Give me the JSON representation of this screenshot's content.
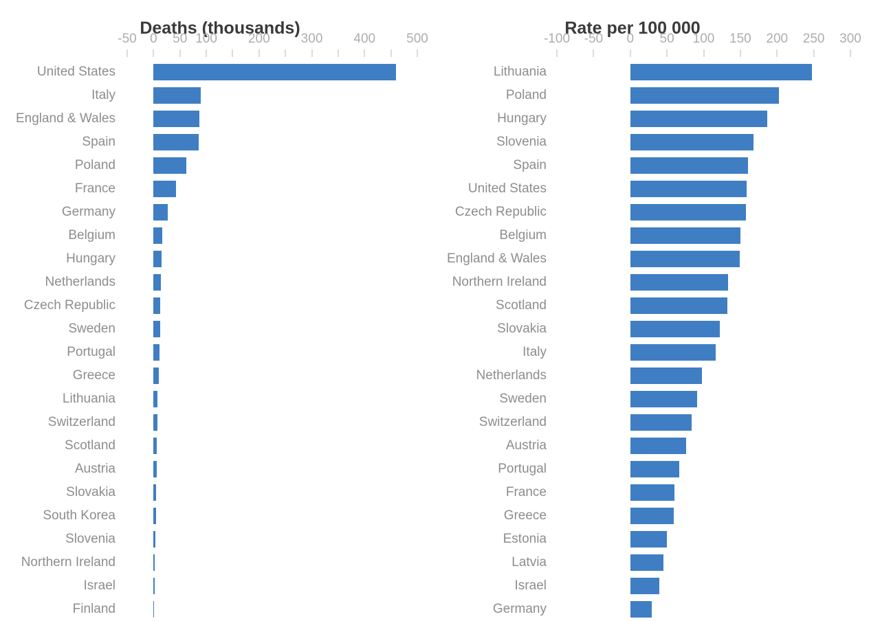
{
  "figure": {
    "background": "#ffffff",
    "bar_color": "#3f7ec3",
    "title_color": "#3a3a3a",
    "category_label_color": "#8d8d8d",
    "tick_label_color": "#adadad",
    "tick_mark_color": "#dcdcdc"
  },
  "chart_data": [
    {
      "type": "bar",
      "orientation": "horizontal",
      "title": "Deaths (thousands)",
      "xlabel": "",
      "ylabel": "",
      "grid": false,
      "legend": false,
      "axis": {
        "min": -50,
        "max": 500,
        "tick_step": 50,
        "labeled_ticks": [
          -50,
          0,
          50,
          100,
          200,
          300,
          400,
          500
        ]
      },
      "categories": [
        "United States",
        "Italy",
        "England & Wales",
        "Spain",
        "Poland",
        "France",
        "Germany",
        "Belgium",
        "Hungary",
        "Netherlands",
        "Czech Republic",
        "Sweden",
        "Portugal",
        "Greece",
        "Lithuania",
        "Switzerland",
        "Scotland",
        "Austria",
        "Slovakia",
        "South Korea",
        "Slovenia",
        "Northern Ireland",
        "Israel",
        "Finland"
      ],
      "values": [
        460,
        90,
        87,
        85,
        62,
        43,
        27,
        17,
        15,
        14,
        13,
        12,
        11,
        9.5,
        8,
        7.5,
        6.5,
        6,
        5,
        4.5,
        3,
        2.5,
        2,
        1
      ]
    },
    {
      "type": "bar",
      "orientation": "horizontal",
      "title": "Rate per 100 000",
      "xlabel": "",
      "ylabel": "",
      "grid": false,
      "legend": false,
      "axis": {
        "min": -100,
        "max": 300,
        "tick_step": 50,
        "labeled_ticks": [
          -100,
          -50,
          0,
          50,
          100,
          150,
          200,
          250,
          300
        ]
      },
      "categories": [
        "Lithuania",
        "Poland",
        "Hungary",
        "Slovenia",
        "Spain",
        "United States",
        "Czech Republic",
        "Belgium",
        "England & Wales",
        "Northern Ireland",
        "Scotland",
        "Slovakia",
        "Italy",
        "Netherlands",
        "Sweden",
        "Switzerland",
        "Austria",
        "Portugal",
        "France",
        "Greece",
        "Estonia",
        "Latvia",
        "Israel",
        "Germany"
      ],
      "values": [
        248,
        203,
        187,
        168,
        160,
        159,
        158,
        150,
        149,
        133,
        132,
        122,
        116,
        98,
        91,
        84,
        76,
        67,
        60,
        59,
        50,
        45,
        40,
        29
      ]
    }
  ]
}
